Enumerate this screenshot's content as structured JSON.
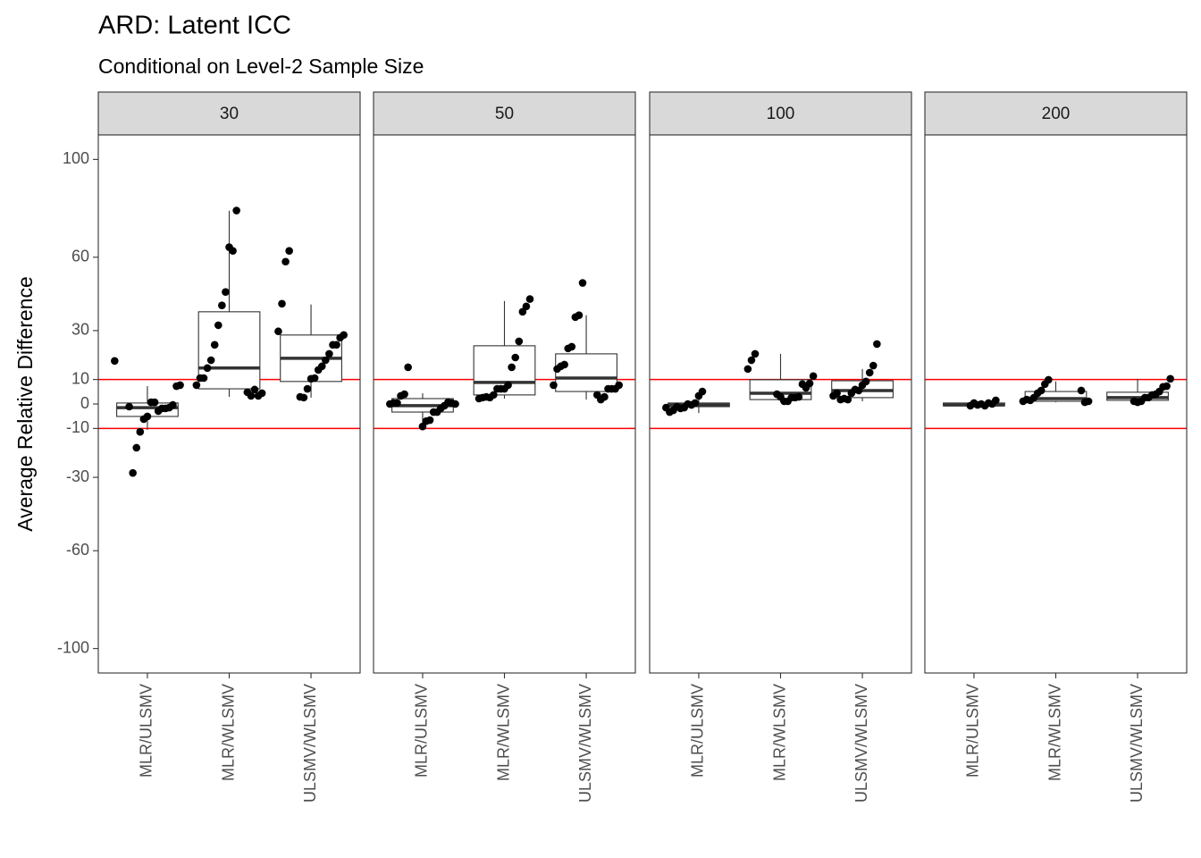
{
  "chart_data": {
    "type": "boxplot",
    "title": "ARD: Latent ICC",
    "subtitle": "Conditional on Level-2 Sample Size",
    "y_label": "Average Relative Difference",
    "categories": [
      "MLR/ULSMV",
      "MLR/WLSMV",
      "ULSMV/WLSMV"
    ],
    "ylim": [
      -110,
      110
    ],
    "yticks": [
      -100,
      -60,
      -30,
      -10,
      0,
      10,
      30,
      60,
      100
    ],
    "reference_lines": [
      10,
      -10
    ],
    "reference_color": "#ff0000",
    "panels": [
      {
        "label": "30",
        "groups": [
          {
            "whisker_low": -10.6,
            "q1": -5.1,
            "median": -1.5,
            "q3": 0.4,
            "whisker_high": 7.3,
            "points": [
              17.6,
              7.7,
              7.3,
              -0.4,
              -1.5,
              -1.8,
              -1.8,
              -2.9,
              0.7,
              0.7,
              -5.1,
              -6.2,
              -11.4,
              -17.9,
              -28.2,
              -1.1
            ]
          },
          {
            "whisker_low": 2.9,
            "q1": 6.2,
            "median": 14.7,
            "q3": 37.7,
            "whisker_high": 79,
            "points": [
              79.1,
              62.6,
              64.1,
              45.8,
              40.3,
              32.2,
              24.2,
              17.9,
              14.7,
              10.6,
              10.6,
              7.7,
              4.4,
              3.3,
              5.9,
              3.3,
              4.8
            ]
          },
          {
            "whisker_low": 2.6,
            "q1": 9.2,
            "median": 18.7,
            "q3": 28.2,
            "whisker_high": 40.7,
            "points": [
              62.6,
              58.2,
              41,
              29.7,
              28.2,
              27.1,
              24.2,
              24.2,
              20.5,
              17.9,
              15.4,
              13.9,
              10.6,
              10.3,
              6.2,
              2.6,
              2.9
            ]
          }
        ]
      },
      {
        "label": "50",
        "groups": [
          {
            "whisker_low": -8.4,
            "q1": -3.3,
            "median": -0.7,
            "q3": 2.2,
            "whisker_high": 4.4,
            "points": [
              15,
              4,
              3.3,
              0.4,
              0.4,
              0,
              0,
              0.4,
              0.7,
              -0.7,
              -1.8,
              -3.3,
              -3.3,
              -6.6,
              -7,
              -9.2
            ]
          },
          {
            "whisker_low": 2.2,
            "q1": 3.7,
            "median": 8.8,
            "q3": 23.8,
            "whisker_high": 42.1,
            "points": [
              42.9,
              39.9,
              37.7,
              25.6,
              19,
              15,
              7.7,
              6.2,
              6.2,
              6.2,
              3.7,
              2.6,
              2.9,
              2.6,
              2.2
            ]
          },
          {
            "whisker_low": 1.8,
            "q1": 5.1,
            "median": 10.6,
            "q3": 20.5,
            "whisker_high": 36.3,
            "points": [
              49.5,
              36.3,
              35.5,
              23.4,
              22.7,
              16.1,
              15.4,
              14.3,
              7.7,
              7.7,
              6.2,
              6.2,
              6.2,
              2.9,
              1.8,
              3.7
            ]
          }
        ]
      },
      {
        "label": "100",
        "groups": [
          {
            "whisker_low": -3.7,
            "q1": -1.1,
            "median": -0.4,
            "q3": 0.4,
            "whisker_high": 4.8,
            "points": [
              5.1,
              3.3,
              0.4,
              -0.4,
              0,
              -1.5,
              -1.8,
              -1.1,
              -2.6,
              -3.3,
              -1.5
            ]
          },
          {
            "whisker_low": 0.7,
            "q1": 1.8,
            "median": 4.4,
            "q3": 9.9,
            "whisker_high": 20.5,
            "points": [
              20.5,
              17.9,
              14.3,
              11.4,
              8.4,
              6.6,
              8.1,
              2.9,
              2.6,
              2.6,
              1.1,
              1.1,
              2.9,
              4
            ]
          },
          {
            "whisker_low": 1.1,
            "q1": 2.6,
            "median": 5.5,
            "q3": 9.5,
            "whisker_high": 14.3,
            "points": [
              24.5,
              15.7,
              12.8,
              9.2,
              7.7,
              5.5,
              5.9,
              4.4,
              1.8,
              2.2,
              1.8,
              4.4,
              3.3
            ]
          }
        ]
      },
      {
        "label": "200",
        "groups": [
          {
            "whisker_low": -1.5,
            "q1": -0.7,
            "median": -0.4,
            "q3": 0.4,
            "whisker_high": 1.5,
            "points": [
              1.5,
              0,
              0.4,
              -0.7,
              0,
              -0.4,
              0.4,
              -0.7
            ]
          },
          {
            "whisker_low": 0.7,
            "q1": 1.1,
            "median": 2.2,
            "q3": 5.1,
            "whisker_high": 9.2,
            "points": [
              9.9,
              8.1,
              5.5,
              4.4,
              2.6,
              1.5,
              1.8,
              1.1,
              1.1,
              0.7,
              5.5
            ]
          },
          {
            "whisker_low": 0.4,
            "q1": 1.5,
            "median": 2.6,
            "q3": 4.8,
            "whisker_high": 10.3,
            "points": [
              10.3,
              7.3,
              7,
              5.1,
              4,
              3.7,
              2.6,
              2.6,
              1.1,
              0.7,
              1.1
            ]
          }
        ]
      }
    ]
  }
}
